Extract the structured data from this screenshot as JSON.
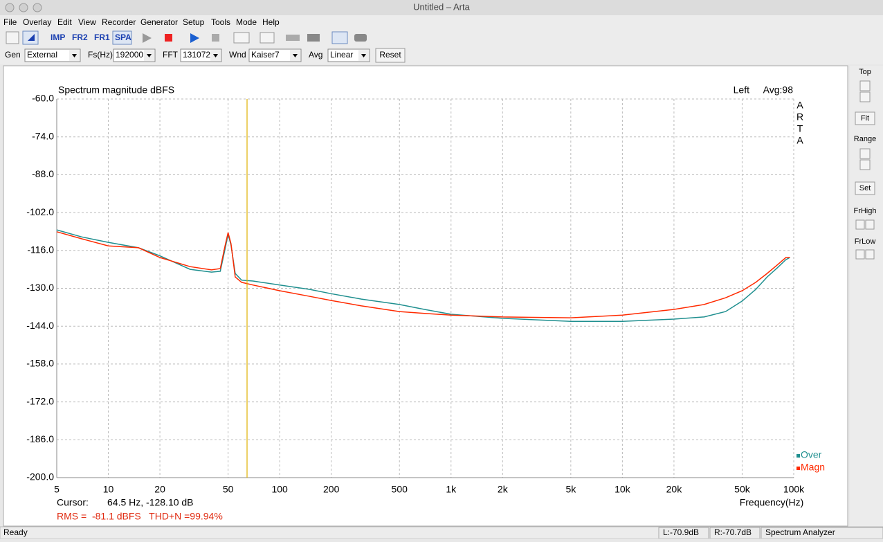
{
  "window": {
    "title": "Untitled – Arta"
  },
  "menu": [
    "File",
    "Overlay",
    "Edit",
    "View",
    "Recorder",
    "Generator",
    "Setup",
    "Tools",
    "Mode",
    "Help"
  ],
  "toolbar": [
    "IMP",
    "FR2",
    "FR1",
    "SPA"
  ],
  "controls": {
    "gen": {
      "label": "Gen",
      "value": "External"
    },
    "fs": {
      "label": "Fs(Hz)",
      "value": "192000"
    },
    "fft": {
      "label": "FFT",
      "value": "131072"
    },
    "wnd": {
      "label": "Wnd",
      "value": "Kaiser7"
    },
    "avg": {
      "label": "Avg",
      "value": "Linear"
    },
    "reset": "Reset"
  },
  "side_panel": {
    "top": "Top",
    "fit": "Fit",
    "range": "Range",
    "set": "Set",
    "frhigh": "FrHigh",
    "frlow": "FrLow"
  },
  "status_bar": {
    "state": "Ready",
    "left": "L:-70.9dB",
    "right": "R:-70.7dB",
    "mode": "Spectrum Analyzer"
  },
  "chart_data": {
    "type": "line",
    "title": "Spectrum magnitude dBFS",
    "channel": "Left",
    "average": "Avg:98",
    "watermark": [
      "A",
      "R",
      "T",
      "A"
    ],
    "x_label": "Frequency(Hz)",
    "x_scale": "log",
    "grid": true,
    "xlim": [
      5,
      100000
    ],
    "xticks": [
      5,
      10,
      20,
      50,
      100,
      200,
      500,
      {
        "value": 1000,
        "label": "1k"
      },
      {
        "value": 2000,
        "label": "2k"
      },
      {
        "value": 5000,
        "label": "5k"
      },
      {
        "value": 10000,
        "label": "10k"
      },
      {
        "value": 20000,
        "label": "20k"
      },
      {
        "value": 50000,
        "label": "50k"
      },
      {
        "value": 100000,
        "label": "100k"
      }
    ],
    "ylim": [
      -200,
      -60
    ],
    "yticks": [
      {
        "value": -60,
        "label": "-60.0"
      },
      {
        "value": -74,
        "label": "-74.0"
      },
      {
        "value": -88,
        "label": "-88.0"
      },
      {
        "value": -102,
        "label": "-102.0"
      },
      {
        "value": -116,
        "label": "-116.0"
      },
      {
        "value": -130,
        "label": "-130.0"
      },
      {
        "value": -144,
        "label": "-144.0"
      },
      {
        "value": -158,
        "label": "-158.0"
      },
      {
        "value": -172,
        "label": "-172.0"
      },
      {
        "value": -186,
        "label": "-186.0"
      },
      {
        "value": -200,
        "label": "-200.0"
      }
    ],
    "x": [
      5,
      7,
      10,
      15,
      20,
      30,
      40,
      45,
      48,
      50,
      52,
      55,
      60,
      70,
      100,
      150,
      200,
      300,
      500,
      700,
      1000,
      2000,
      5000,
      10000,
      20000,
      30000,
      40000,
      50000,
      60000,
      70000,
      80000,
      90000,
      95000
    ],
    "series": [
      {
        "name": "Over",
        "color": "#1f8f8f",
        "values": [
          -108.4,
          -111,
          -113,
          -115,
          -118,
          -123,
          -124,
          -123.7,
          -115.5,
          -110,
          -114,
          -124.5,
          -127,
          -127.3,
          -128.8,
          -130.4,
          -132,
          -134,
          -136,
          -137.8,
          -139.6,
          -141.1,
          -142.2,
          -142.2,
          -141.4,
          -140.6,
          -138.6,
          -134.7,
          -130.4,
          -125.8,
          -122.5,
          -119.4,
          -118.6
        ]
      },
      {
        "name": "Magn",
        "color": "#ff2a00",
        "values": [
          -109.1,
          -111.7,
          -114.3,
          -115,
          -118.6,
          -122,
          -123.2,
          -122.7,
          -114.3,
          -109.4,
          -113.5,
          -125.8,
          -127.8,
          -128.8,
          -130.9,
          -133,
          -134.5,
          -136.5,
          -138.6,
          -139.3,
          -139.9,
          -140.6,
          -140.9,
          -139.9,
          -137.8,
          -136,
          -133.5,
          -130.9,
          -127.8,
          -124.5,
          -121.4,
          -118.6,
          -118.6
        ]
      }
    ],
    "cursor": {
      "label": "Cursor:",
      "x": 64.5,
      "text": "64.5 Hz, -128.10 dB",
      "color": "#e0b000"
    },
    "summary": "RMS =  -81.1 dBFS   THD+N =99.94%"
  }
}
